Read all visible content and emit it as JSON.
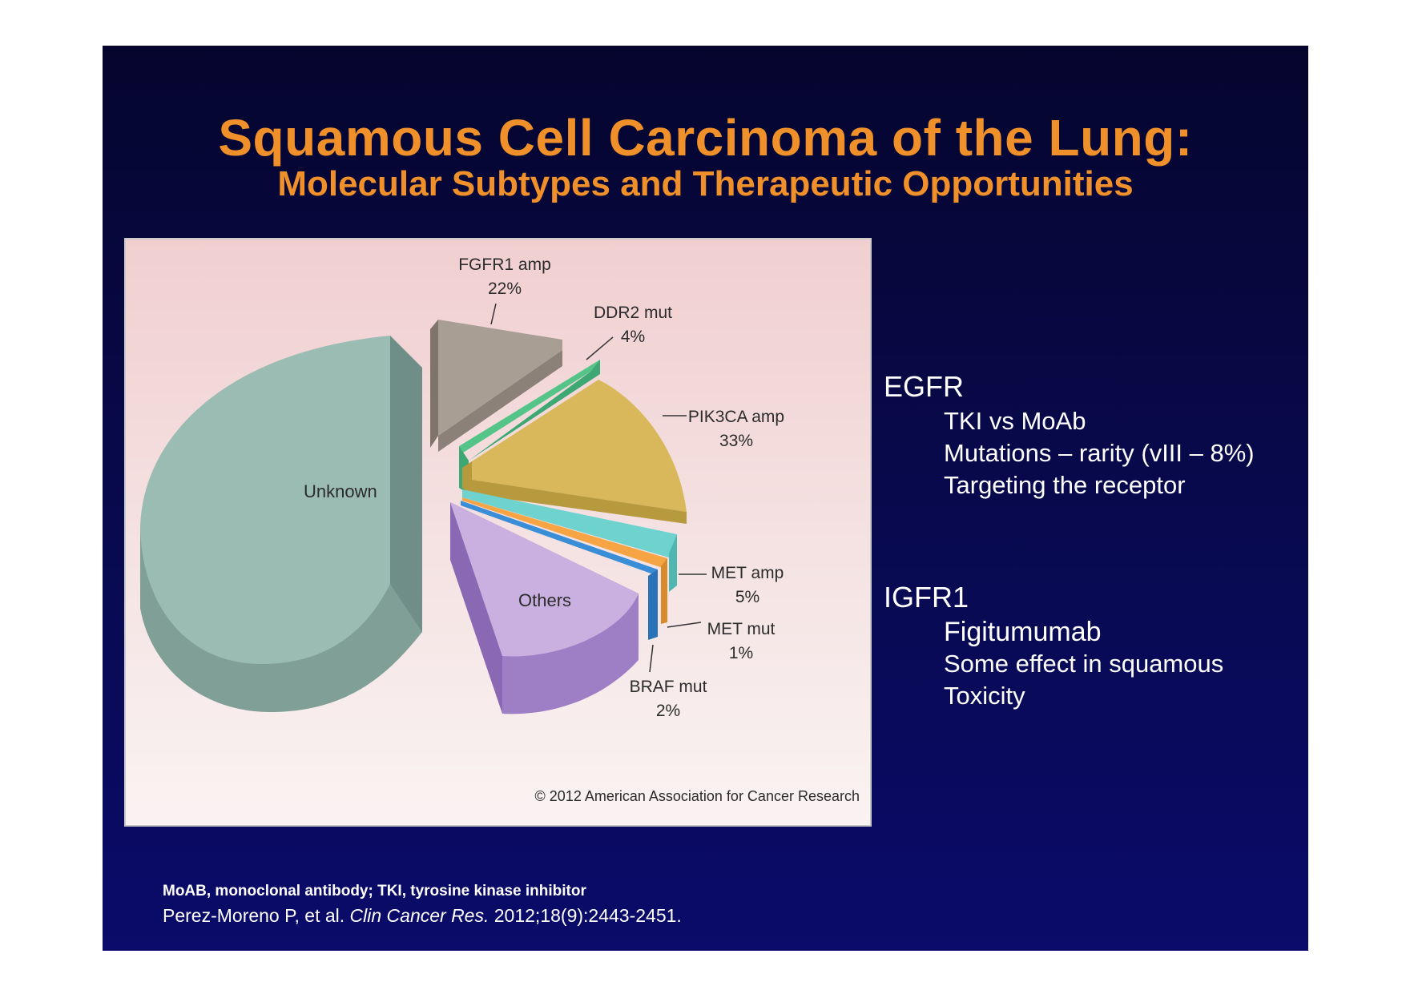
{
  "slide": {
    "title": "Squamous Cell Carcinoma of the Lung:",
    "subtitle": "Molecular Subtypes and Therapeutic Opportunities"
  },
  "chart_data": {
    "type": "pie",
    "title": "",
    "categories": [
      "FGFR1 amp",
      "DDR2 mut",
      "PIK3CA amp",
      "MET amp",
      "MET mut",
      "BRAF mut",
      "Others",
      "Unknown"
    ],
    "values": [
      22,
      4,
      33,
      5,
      1,
      2,
      null,
      null
    ],
    "value_labels": [
      "22%",
      "4%",
      "33%",
      "5%",
      "1%",
      "2%",
      "",
      ""
    ],
    "colors": [
      "#a89e94",
      "#55c488",
      "#d8b85a",
      "#6ed3cf",
      "#f7a544",
      "#3a8ed8",
      "#c9b0e0",
      "#9bbcb3"
    ],
    "copyright": "© 2012 American Association for Cancer Research"
  },
  "right_panel": {
    "egfr": {
      "heading": "EGFR",
      "items": [
        "TKI vs MoAb",
        "Mutations – rarity (vIII – 8%)",
        "Targeting the receptor"
      ]
    },
    "igfr1": {
      "heading": "IGFR1",
      "items": [
        "Figitumumab",
        "Some effect in squamous",
        "Toxicity"
      ]
    }
  },
  "footer": {
    "abbreviations": "MoAB, monoclonal antibody; TKI, tyrosine kinase inhibitor",
    "citation_authors": "Perez-Moreno P, et al.",
    "citation_journal": "Clin Cancer Res.",
    "citation_details": "2012;18(9):2443-2451."
  }
}
